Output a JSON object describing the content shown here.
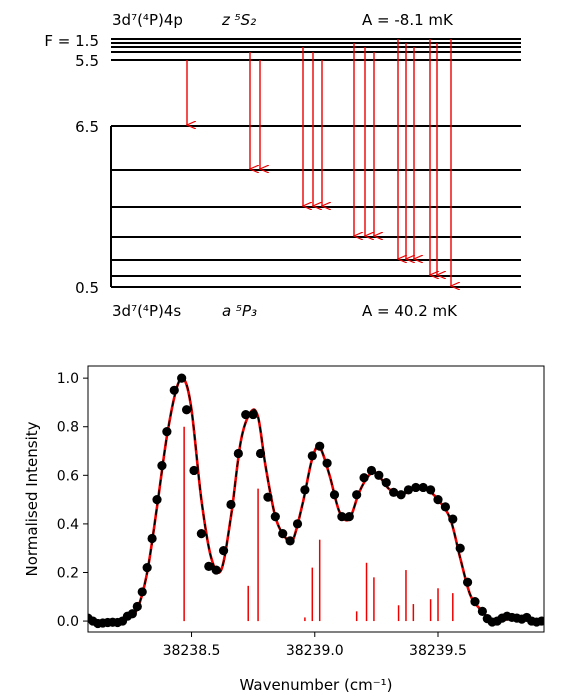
{
  "level_diagram": {
    "upper": {
      "configuration": "3d⁷(⁴P)4p",
      "term": "z ⁵S₂",
      "hyperfine_A": "A = -8.1 mK",
      "F_labels": [
        "F = 1.5",
        "5.5"
      ],
      "level_count": 5
    },
    "lower": {
      "configuration": "3d⁷(⁴P)4s",
      "term": "a ⁵P₃",
      "hyperfine_A": "A = 40.2 mK",
      "F_labels": [
        "6.5",
        "0.5"
      ],
      "level_count": 7
    },
    "transitions": [
      [
        4,
        0
      ],
      [
        3,
        1
      ],
      [
        4,
        1
      ],
      [
        2,
        2
      ],
      [
        3,
        2
      ],
      [
        4,
        2
      ],
      [
        1,
        3
      ],
      [
        2,
        3
      ],
      [
        3,
        3
      ],
      [
        0,
        4
      ],
      [
        1,
        4
      ],
      [
        2,
        4
      ],
      [
        0,
        5
      ],
      [
        1,
        5
      ],
      [
        0,
        6
      ]
    ],
    "colors": {
      "levels": "#000000",
      "arrows": "#ee0000"
    }
  },
  "chart_data": {
    "type": "line",
    "xlabel": "Wavenumber (cm⁻¹)",
    "ylabel": "Normalised Intensity",
    "xlim": [
      38238.08,
      38239.93
    ],
    "ylim": [
      -0.045,
      1.05
    ],
    "x_ticks": [
      {
        "value": 38238.5,
        "label": "38238.5"
      },
      {
        "value": 38239.0,
        "label": "38239.0"
      },
      {
        "value": 38239.5,
        "label": "38239.5"
      }
    ],
    "y_ticks": [
      {
        "value": 0.0,
        "label": "0.0"
      },
      {
        "value": 0.2,
        "label": "0.2"
      },
      {
        "value": 0.4,
        "label": "0.4"
      },
      {
        "value": 0.6,
        "label": "0.6"
      },
      {
        "value": 0.8,
        "label": "0.8"
      },
      {
        "value": 1.0,
        "label": "1.0"
      }
    ],
    "grid": false,
    "series": [
      {
        "style": "markers",
        "color": "#000000",
        "x": [
          38238.08,
          38238.1,
          38238.12,
          38238.14,
          38238.16,
          38238.18,
          38238.2,
          38238.22,
          38238.24,
          38238.26,
          38238.28,
          38238.3,
          38238.32,
          38238.34,
          38238.36,
          38238.38,
          38238.4,
          38238.43,
          38238.46,
          38238.48,
          38238.51,
          38238.54,
          38238.57,
          38238.6,
          38238.63,
          38238.66,
          38238.69,
          38238.72,
          38238.75,
          38238.78,
          38238.81,
          38238.84,
          38238.87,
          38238.9,
          38238.93,
          38238.96,
          38238.99,
          38239.02,
          38239.05,
          38239.08,
          38239.11,
          38239.14,
          38239.17,
          38239.2,
          38239.23,
          38239.26,
          38239.29,
          38239.32,
          38239.35,
          38239.38,
          38239.41,
          38239.44,
          38239.47,
          38239.5,
          38239.53,
          38239.56,
          38239.59,
          38239.62,
          38239.65,
          38239.68,
          38239.7,
          38239.72,
          38239.74,
          38239.76,
          38239.78,
          38239.8,
          38239.82,
          38239.84,
          38239.86,
          38239.88,
          38239.9,
          38239.92
        ],
        "y": [
          0.012,
          0.0,
          -0.01,
          -0.008,
          -0.006,
          -0.005,
          -0.006,
          0.0,
          0.02,
          0.03,
          0.06,
          0.12,
          0.22,
          0.34,
          0.5,
          0.64,
          0.78,
          0.95,
          1.0,
          0.87,
          0.62,
          0.36,
          0.225,
          0.21,
          0.29,
          0.48,
          0.69,
          0.85,
          0.85,
          0.69,
          0.51,
          0.43,
          0.36,
          0.33,
          0.4,
          0.54,
          0.68,
          0.72,
          0.65,
          0.52,
          0.43,
          0.43,
          0.52,
          0.59,
          0.62,
          0.6,
          0.57,
          0.53,
          0.52,
          0.54,
          0.55,
          0.55,
          0.54,
          0.5,
          0.47,
          0.42,
          0.3,
          0.16,
          0.08,
          0.04,
          0.01,
          -0.004,
          0.0,
          0.012,
          0.02,
          0.015,
          0.012,
          0.008,
          0.015,
          0.0,
          -0.004,
          0.0
        ]
      },
      {
        "style": "red-solid",
        "color": "#ee0000",
        "x": [
          38238.08,
          38238.12,
          38238.16,
          38238.2,
          38238.24,
          38238.28,
          38238.32,
          38238.36,
          38238.4,
          38238.44,
          38238.47,
          38238.5,
          38238.54,
          38238.58,
          38238.62,
          38238.66,
          38238.7,
          38238.74,
          38238.77,
          38238.8,
          38238.84,
          38238.88,
          38238.91,
          38238.95,
          38238.99,
          38239.02,
          38239.06,
          38239.1,
          38239.14,
          38239.18,
          38239.22,
          38239.25,
          38239.3,
          38239.35,
          38239.4,
          38239.45,
          38239.5,
          38239.55,
          38239.59,
          38239.63,
          38239.67,
          38239.71,
          38239.75,
          38239.8,
          38239.85,
          38239.93
        ],
        "y": [
          0.0,
          -0.008,
          -0.006,
          -0.004,
          0.012,
          0.05,
          0.2,
          0.47,
          0.76,
          0.96,
          0.995,
          0.87,
          0.5,
          0.26,
          0.21,
          0.43,
          0.74,
          0.86,
          0.84,
          0.64,
          0.43,
          0.345,
          0.33,
          0.48,
          0.67,
          0.715,
          0.6,
          0.45,
          0.42,
          0.53,
          0.6,
          0.61,
          0.545,
          0.52,
          0.545,
          0.545,
          0.5,
          0.42,
          0.26,
          0.11,
          0.05,
          0.01,
          0.002,
          0.01,
          0.005,
          0.0
        ]
      },
      {
        "style": "black-dashed",
        "color": "#000000",
        "same_as_previous": true
      },
      {
        "style": "sticks",
        "color": "#ee0000",
        "x": [
          38238.47,
          38238.73,
          38238.77,
          38238.96,
          38238.99,
          38239.02,
          38239.17,
          38239.21,
          38239.24,
          38239.34,
          38239.37,
          38239.4,
          38239.47,
          38239.5,
          38239.56
        ],
        "y": [
          0.8,
          0.145,
          0.545,
          0.015,
          0.22,
          0.335,
          0.04,
          0.24,
          0.18,
          0.065,
          0.21,
          0.07,
          0.09,
          0.135,
          0.115
        ]
      }
    ]
  }
}
